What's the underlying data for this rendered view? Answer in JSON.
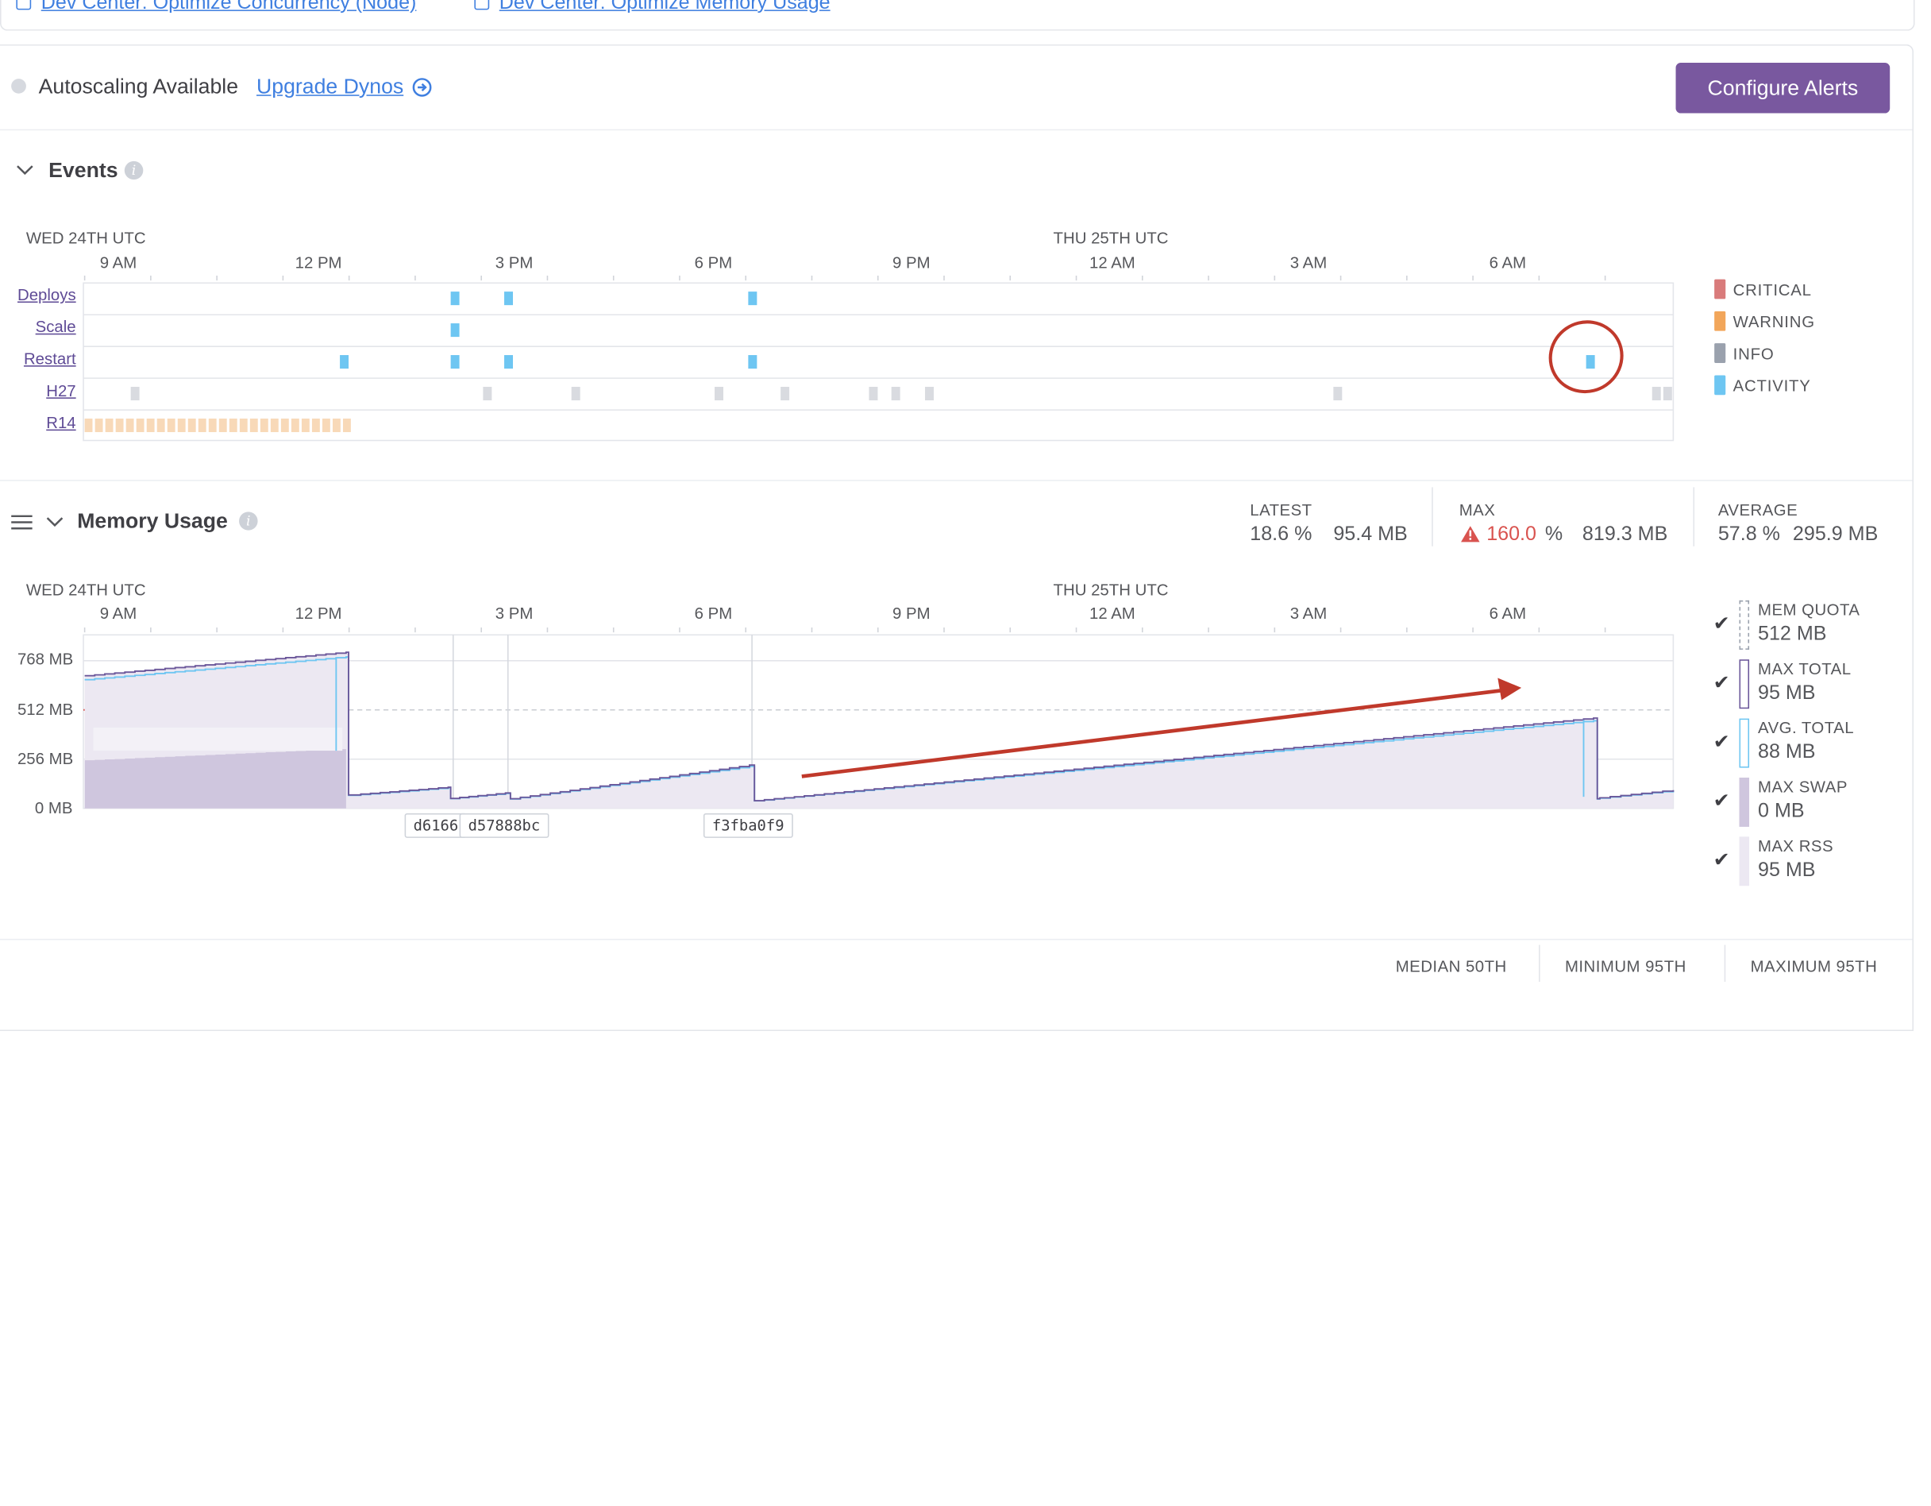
{
  "dev_links": [
    {
      "label": "Dev Center: Optimize Concurrency (Node)"
    },
    {
      "label": "Dev Center: Optimize Memory Usage"
    }
  ],
  "autoscaling": {
    "label": "Autoscaling Available",
    "upgrade_link": "Upgrade Dynos",
    "configure_button": "Configure Alerts"
  },
  "events": {
    "title": "Events",
    "day1": "WED 24TH UTC",
    "day2": "THU 25TH UTC",
    "time_ticks": [
      "9 AM",
      "12 PM",
      "3 PM",
      "6 PM",
      "9 PM",
      "12 AM",
      "3 AM",
      "6 AM"
    ],
    "rows": [
      "Deploys",
      "Scale",
      "Restart",
      "H27",
      "R14"
    ],
    "legend": [
      {
        "label": "CRITICAL",
        "color": "#d97b7b"
      },
      {
        "label": "WARNING",
        "color": "#f2a65a"
      },
      {
        "label": "INFO",
        "color": "#9aa1ad"
      },
      {
        "label": "ACTIVITY",
        "color": "#6ec6f2"
      }
    ]
  },
  "memory": {
    "title": "Memory Usage",
    "stats": {
      "latest_label": "LATEST",
      "latest_pct": "18.6 %",
      "latest_mb": "95.4 MB",
      "max_label": "MAX",
      "max_pct": "160.0",
      "max_pct_unit": "%",
      "max_mb": "819.3 MB",
      "avg_label": "AVERAGE",
      "avg_pct": "57.8 %",
      "avg_mb": "295.9 MB"
    },
    "y_ticks": [
      "768 MB",
      "512 MB",
      "256 MB",
      "0 MB"
    ],
    "deploy_tags": [
      "d6166",
      "d57888bc",
      "f3fba0f9"
    ],
    "legend": [
      {
        "label": "MEM QUOTA",
        "value": "512 MB"
      },
      {
        "label": "MAX TOTAL",
        "value": "95 MB"
      },
      {
        "label": "AVG. TOTAL",
        "value": "88 MB"
      },
      {
        "label": "MAX SWAP",
        "value": "0 MB"
      },
      {
        "label": "MAX RSS",
        "value": "95 MB"
      }
    ]
  },
  "bottom_stats": [
    "MEDIAN 50TH",
    "MINIMUM 95TH",
    "MAXIMUM 95TH"
  ],
  "colors": {
    "brand": "#79589f",
    "link": "#3f7fe0",
    "critical": "#d9534f",
    "activity": "#6ec6f2",
    "h27": "#d9dbe0",
    "r14": "#f8d9b8",
    "annotation": "#c0392b"
  }
}
